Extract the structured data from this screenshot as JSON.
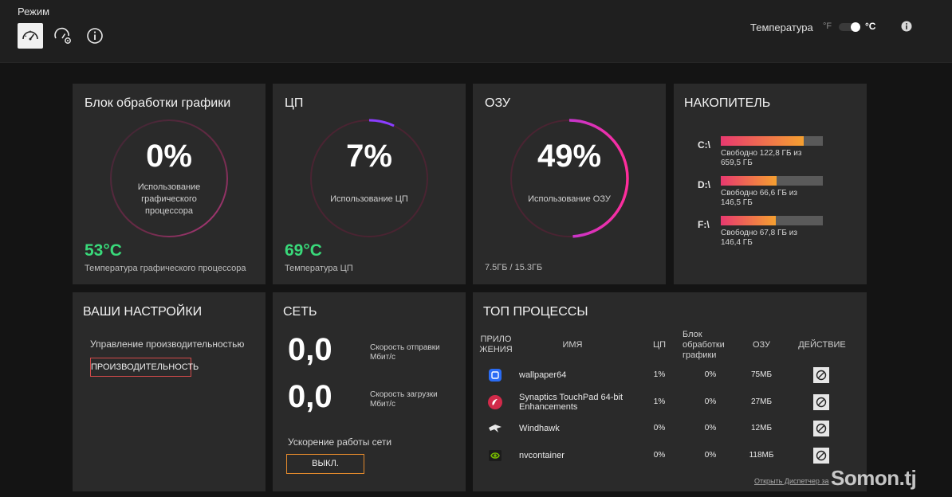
{
  "header": {
    "mode_label": "Режим",
    "mode_buttons": [
      {
        "icon": "speedometer-icon",
        "active": true
      },
      {
        "icon": "speedometer-gear-icon",
        "active": false
      },
      {
        "icon": "info-icon",
        "active": false
      }
    ],
    "temperature_label": "Температура",
    "unit_f": "°F",
    "unit_c": "°C",
    "unit_selected": "°C"
  },
  "gpu": {
    "title": "Блок обработки графики",
    "usage": "0%",
    "usage_fraction": 0.0,
    "usage_caption_lines": [
      "Использование",
      "графического",
      "процессора"
    ],
    "temperature": "53°C",
    "temperature_caption": "Температура графического процессора"
  },
  "cpu": {
    "title": "ЦП",
    "usage": "7%",
    "usage_fraction": 0.07,
    "usage_caption": "Использование ЦП",
    "temperature": "69°C",
    "temperature_caption": "Температура ЦП"
  },
  "ram": {
    "title": "ОЗУ",
    "usage": "49%",
    "usage_fraction": 0.49,
    "usage_caption": "Использование ОЗУ",
    "amount": "7.5ГБ / 15.3ГБ"
  },
  "storage": {
    "title": "НАКОПИТЕЛЬ",
    "drives": [
      {
        "letter": "C:\\",
        "free_line1": "Свободно 122,8 ГБ из",
        "free_line2": "659,5 ГБ",
        "used_fraction": 0.81
      },
      {
        "letter": "D:\\",
        "free_line1": "Свободно 66,6 ГБ из",
        "free_line2": "146,5 ГБ",
        "used_fraction": 0.55
      },
      {
        "letter": "F:\\",
        "free_line1": "Свободно 67,8 ГБ из",
        "free_line2": "146,4 ГБ",
        "used_fraction": 0.54
      }
    ]
  },
  "settings": {
    "title": "ВАШИ НАСТРОЙКИ",
    "performance_label": "Управление производительностью",
    "performance_button": "ПРОИЗВОДИТЕЛЬНОСТЬ"
  },
  "network": {
    "title": "СЕТЬ",
    "upload_value": "0,0",
    "upload_caption_lines": [
      "Скорость отправки",
      "Мбит/с"
    ],
    "download_value": "0,0",
    "download_caption_lines": [
      "Скорость загрузки",
      "Мбит/с"
    ],
    "acceleration_label": "Ускорение работы сети",
    "acceleration_button": "ВЫКЛ."
  },
  "processes": {
    "title": "ТОП ПРОЦЕССЫ",
    "headers": {
      "app_lines": [
        "ПРИЛО",
        "ЖЕНИЯ"
      ],
      "name": "ИМЯ",
      "cpu": "ЦП",
      "gpu_lines": [
        "Блок",
        "обработки",
        "графики"
      ],
      "ram": "ОЗУ",
      "action": "ДЕЙСТВИЕ"
    },
    "rows": [
      {
        "icon": "wallpaper-engine-icon",
        "name_lines": [
          "wallpaper64"
        ],
        "cpu": "1%",
        "gpu": "0%",
        "ram": "75МБ"
      },
      {
        "icon": "synaptics-icon",
        "name_lines": [
          "Synaptics TouchPad 64-bit",
          "Enhancements"
        ],
        "cpu": "1%",
        "gpu": "0%",
        "ram": "27МБ"
      },
      {
        "icon": "windhawk-icon",
        "name_lines": [
          "Windhawk"
        ],
        "cpu": "0%",
        "gpu": "0%",
        "ram": "12МБ"
      },
      {
        "icon": "nvidia-icon",
        "name_lines": [
          "nvcontainer"
        ],
        "cpu": "0%",
        "gpu": "0%",
        "ram": "118МБ"
      }
    ],
    "task_manager_link": "Открыть Диспетчер за"
  },
  "watermark": "Somon.tj",
  "colors": {
    "temp_green": "#39d97a",
    "ring_start": "#ff2d7a",
    "ring_end": "#8b3dff",
    "drive_fill_start": "#e8396f",
    "drive_fill_end": "#f5a030"
  }
}
